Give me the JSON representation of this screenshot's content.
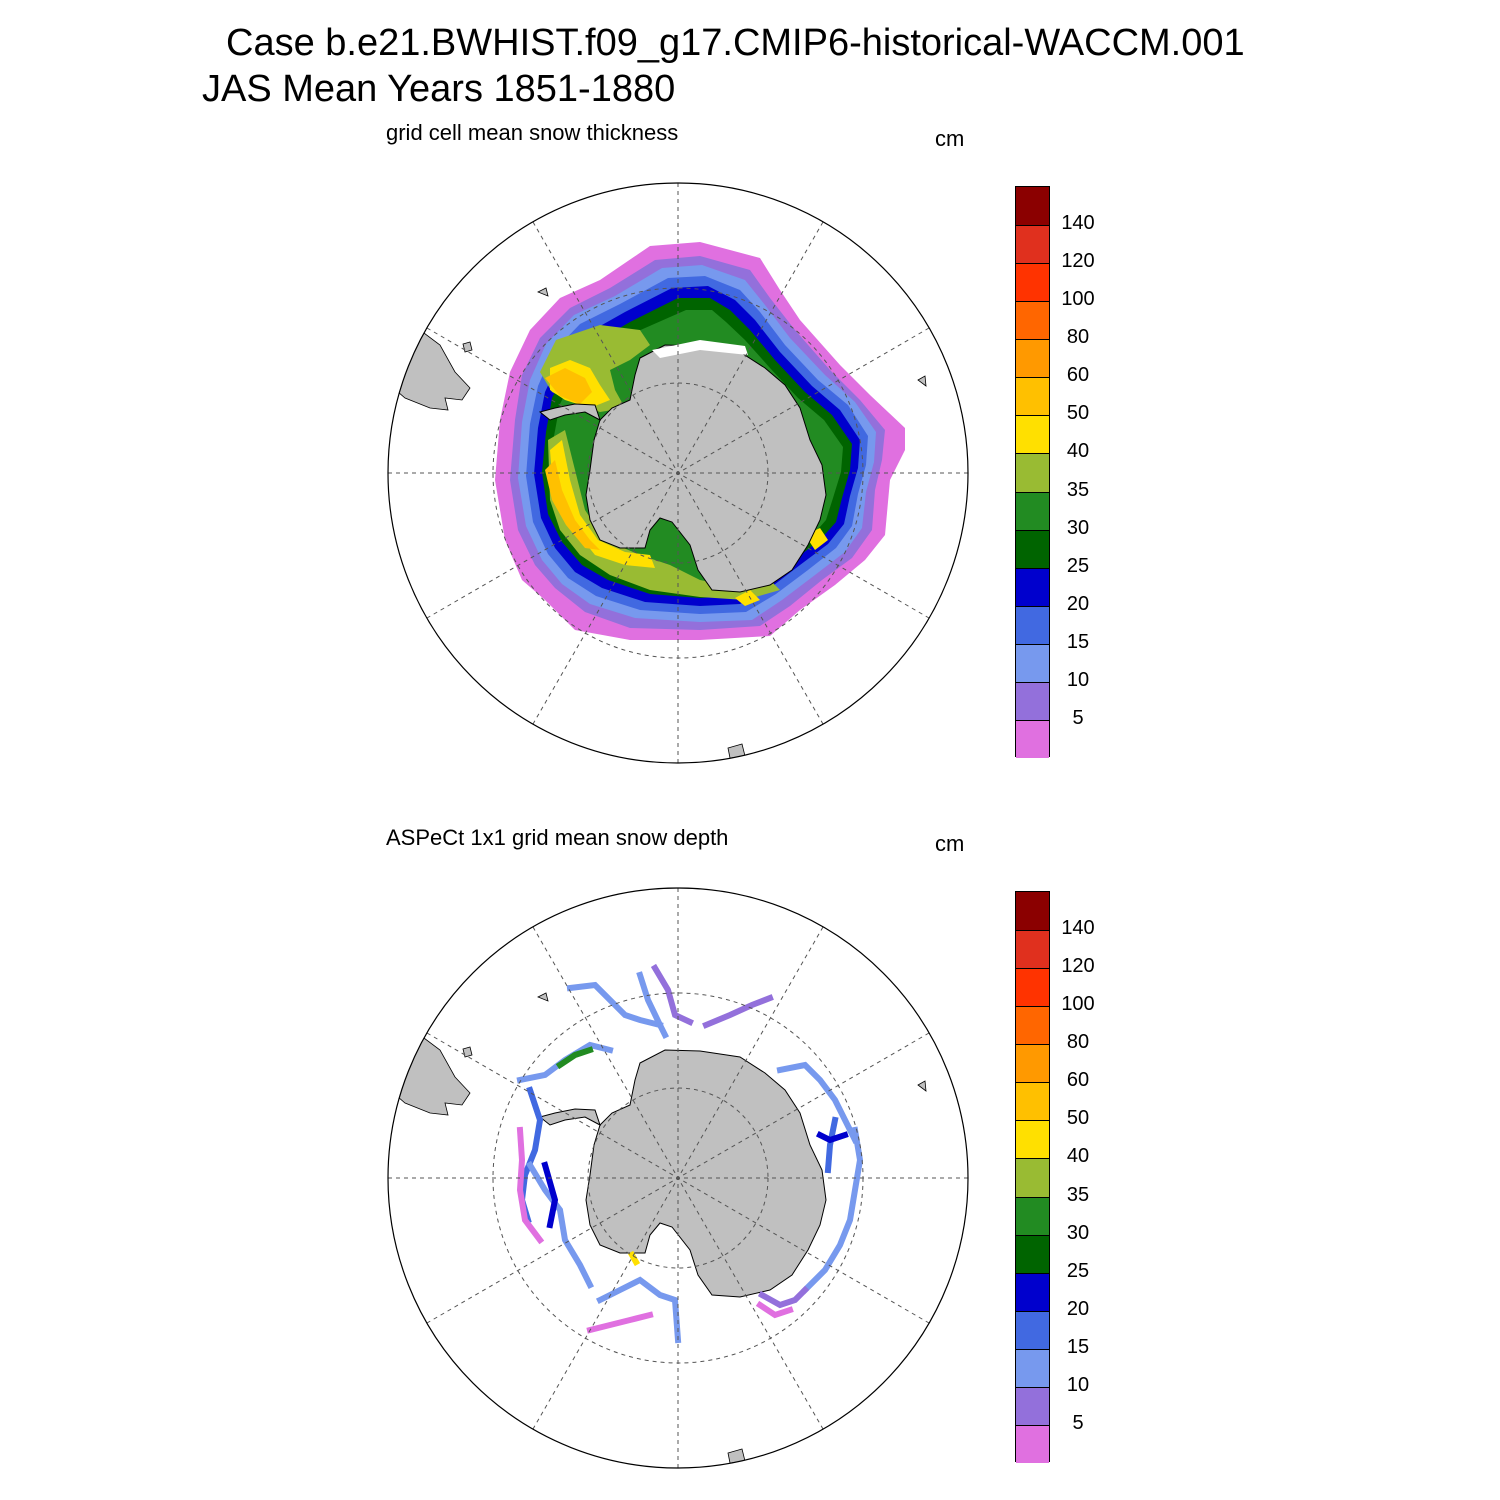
{
  "header": {
    "line1": "Case b.e21.BWHIST.f09_g17.CMIP6-historical-WACCM.001",
    "line2": "JAS Mean   Years 1851-1880"
  },
  "panels": [
    {
      "title": "grid cell mean snow thickness",
      "units": "cm"
    },
    {
      "title": "ASPeCt 1x1 grid mean snow depth",
      "units": "cm"
    }
  ],
  "colorbar": {
    "labels": [
      "140",
      "120",
      "100",
      "80",
      "60",
      "50",
      "40",
      "35",
      "30",
      "25",
      "20",
      "15",
      "10",
      "5"
    ],
    "colors": [
      "#8b0000",
      "#e0301e",
      "#ff3300",
      "#ff6600",
      "#ff9900",
      "#ffc000",
      "#ffe000",
      "#99bb33",
      "#228b22",
      "#006400",
      "#0000cd",
      "#4169e1",
      "#7799ee",
      "#9370db",
      "#e070e0"
    ]
  },
  "map": {
    "projection": "south-polar-stereographic",
    "land_color": "#c0c0c0",
    "gridline_style": "dashed"
  }
}
